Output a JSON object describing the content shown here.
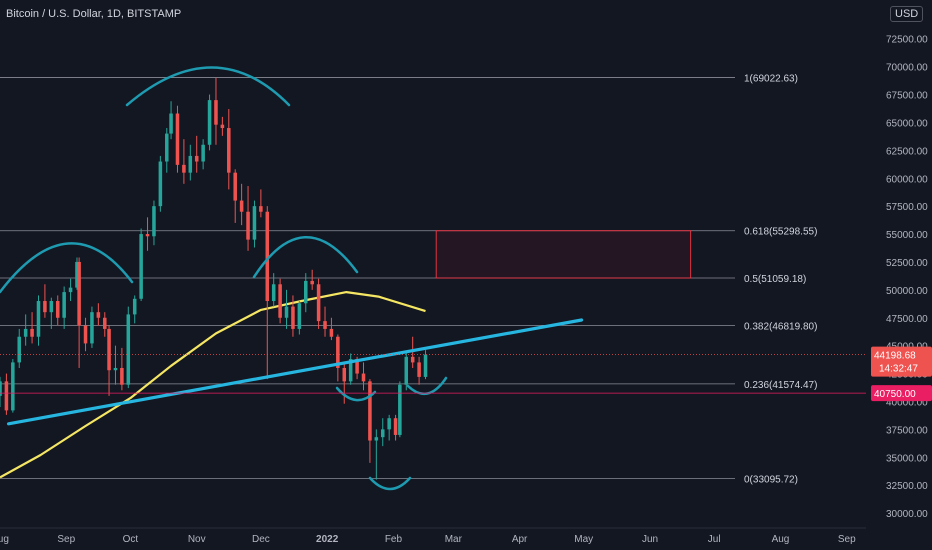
{
  "header": {
    "symbol_title": "Bitcoin / U.S. Dollar, 1D, BITSTAMP",
    "currency_label": "USD"
  },
  "colors": {
    "background": "#131722",
    "up_candle": "#26a69a",
    "down_candle": "#ef5350",
    "fib_line": "#b2b5be",
    "moving_average": "#f5e663",
    "trendline": "#26b6e0",
    "pattern_arc": "#1e9bb0",
    "target_box": "#f23645",
    "last_price_badge": "#ef5350",
    "marker_badge": "#e91e63"
  },
  "chart_data": {
    "type": "candlestick",
    "title": "Bitcoin / U.S. Dollar, 1D, BITSTAMP",
    "xlabel": "",
    "ylabel": "",
    "x_ticks": [
      "Aug",
      "Sep",
      "Oct",
      "Nov",
      "Dec",
      "2022",
      "Feb",
      "Mar",
      "Apr",
      "May",
      "Jun",
      "Jul",
      "Aug",
      "Sep"
    ],
    "y_ticks": [
      "30000.00",
      "32500.00",
      "35000.00",
      "37500.00",
      "40000.00",
      "42500.00",
      "45000.00",
      "47500.00",
      "50000.00",
      "52500.00",
      "55000.00",
      "57500.00",
      "60000.00",
      "62500.00",
      "65000.00",
      "67500.00",
      "70000.00",
      "72500.00"
    ],
    "ylim": [
      29200,
      74000
    ],
    "xlim": [
      "2021-08-01",
      "2022-09-10"
    ],
    "grid": false,
    "last_price": "44198.68",
    "countdown": "14:32:47",
    "marked_level": "40750.00",
    "fib_levels": [
      {
        "label": "1(69022.63)",
        "value": 69022.63
      },
      {
        "label": "0.618(55298.55)",
        "value": 55298.55
      },
      {
        "label": "0.5(51059.18)",
        "value": 51059.18
      },
      {
        "label": "0.382(46819.80)",
        "value": 46819.8
      },
      {
        "label": "0.236(41574.47)",
        "value": 41574.47
      },
      {
        "label": "0(33095.72)",
        "value": 33095.72
      }
    ],
    "target_zone": {
      "from": "2022-02-21",
      "to": "2022-06-20",
      "low": 51059.18,
      "high": 55298.55
    },
    "trendline": [
      {
        "x": "2021-08-05",
        "y": 38000
      },
      {
        "x": "2022-04-30",
        "y": 47300
      }
    ],
    "moving_average": [
      {
        "x": "2021-08-01",
        "y": 33200
      },
      {
        "x": "2021-08-20",
        "y": 35200
      },
      {
        "x": "2021-09-10",
        "y": 37800
      },
      {
        "x": "2021-10-01",
        "y": 40300
      },
      {
        "x": "2021-10-20",
        "y": 43200
      },
      {
        "x": "2021-11-10",
        "y": 46100
      },
      {
        "x": "2021-12-01",
        "y": 48200
      },
      {
        "x": "2021-12-20",
        "y": 49000
      },
      {
        "x": "2022-01-10",
        "y": 49800
      },
      {
        "x": "2022-01-25",
        "y": 49400
      },
      {
        "x": "2022-02-16",
        "y": 48100
      }
    ],
    "ohlc": [
      {
        "x": "2021-08-01",
        "o": 40500,
        "h": 42200,
        "l": 39500,
        "c": 41800
      },
      {
        "x": "2021-08-04",
        "o": 41800,
        "h": 42500,
        "l": 38800,
        "c": 39200
      },
      {
        "x": "2021-08-07",
        "o": 39200,
        "h": 43800,
        "l": 39000,
        "c": 43500
      },
      {
        "x": "2021-08-10",
        "o": 43500,
        "h": 46500,
        "l": 43000,
        "c": 45800
      },
      {
        "x": "2021-08-13",
        "o": 45800,
        "h": 47800,
        "l": 45000,
        "c": 46500
      },
      {
        "x": "2021-08-16",
        "o": 46500,
        "h": 48000,
        "l": 45200,
        "c": 45800
      },
      {
        "x": "2021-08-19",
        "o": 45800,
        "h": 49500,
        "l": 45000,
        "c": 49000
      },
      {
        "x": "2021-08-22",
        "o": 49000,
        "h": 50500,
        "l": 47500,
        "c": 48000
      },
      {
        "x": "2021-08-25",
        "o": 48000,
        "h": 49300,
        "l": 46500,
        "c": 49000
      },
      {
        "x": "2021-08-28",
        "o": 49000,
        "h": 49500,
        "l": 46800,
        "c": 47500
      },
      {
        "x": "2021-08-31",
        "o": 47500,
        "h": 50300,
        "l": 46500,
        "c": 49800
      },
      {
        "x": "2021-09-03",
        "o": 49800,
        "h": 51000,
        "l": 49000,
        "c": 50200
      },
      {
        "x": "2021-09-06",
        "o": 50200,
        "h": 52900,
        "l": 50000,
        "c": 52500
      },
      {
        "x": "2021-09-07",
        "o": 52500,
        "h": 52900,
        "l": 43000,
        "c": 46800
      },
      {
        "x": "2021-09-10",
        "o": 46800,
        "h": 47500,
        "l": 44500,
        "c": 45200
      },
      {
        "x": "2021-09-13",
        "o": 45200,
        "h": 48500,
        "l": 44800,
        "c": 48000
      },
      {
        "x": "2021-09-16",
        "o": 48000,
        "h": 48800,
        "l": 46800,
        "c": 47500
      },
      {
        "x": "2021-09-19",
        "o": 47500,
        "h": 48000,
        "l": 45800,
        "c": 46500
      },
      {
        "x": "2021-09-21",
        "o": 46500,
        "h": 46800,
        "l": 40500,
        "c": 42800
      },
      {
        "x": "2021-09-24",
        "o": 42800,
        "h": 45000,
        "l": 41500,
        "c": 43000
      },
      {
        "x": "2021-09-27",
        "o": 43000,
        "h": 44800,
        "l": 41000,
        "c": 41500
      },
      {
        "x": "2021-09-30",
        "o": 41500,
        "h": 48500,
        "l": 41200,
        "c": 47800
      },
      {
        "x": "2021-10-03",
        "o": 47800,
        "h": 49500,
        "l": 47000,
        "c": 49200
      },
      {
        "x": "2021-10-06",
        "o": 49200,
        "h": 55500,
        "l": 49000,
        "c": 55000
      },
      {
        "x": "2021-10-09",
        "o": 55000,
        "h": 56500,
        "l": 53500,
        "c": 54800
      },
      {
        "x": "2021-10-12",
        "o": 54800,
        "h": 58000,
        "l": 54000,
        "c": 57500
      },
      {
        "x": "2021-10-15",
        "o": 57500,
        "h": 62000,
        "l": 57000,
        "c": 61500
      },
      {
        "x": "2021-10-18",
        "o": 61500,
        "h": 64500,
        "l": 60500,
        "c": 64000
      },
      {
        "x": "2021-10-20",
        "o": 64000,
        "h": 66900,
        "l": 63500,
        "c": 65800
      },
      {
        "x": "2021-10-23",
        "o": 65800,
        "h": 66500,
        "l": 60500,
        "c": 61200
      },
      {
        "x": "2021-10-26",
        "o": 61200,
        "h": 63500,
        "l": 59500,
        "c": 60500
      },
      {
        "x": "2021-10-29",
        "o": 60500,
        "h": 63000,
        "l": 59800,
        "c": 62000
      },
      {
        "x": "2021-11-01",
        "o": 62000,
        "h": 63800,
        "l": 60500,
        "c": 61500
      },
      {
        "x": "2021-11-04",
        "o": 61500,
        "h": 63500,
        "l": 60800,
        "c": 63000
      },
      {
        "x": "2021-11-07",
        "o": 63000,
        "h": 67500,
        "l": 62500,
        "c": 67000
      },
      {
        "x": "2021-11-10",
        "o": 67000,
        "h": 69000,
        "l": 63000,
        "c": 64800
      },
      {
        "x": "2021-11-13",
        "o": 64800,
        "h": 65500,
        "l": 63800,
        "c": 64500
      },
      {
        "x": "2021-11-16",
        "o": 64500,
        "h": 66200,
        "l": 59000,
        "c": 60500
      },
      {
        "x": "2021-11-19",
        "o": 60500,
        "h": 60800,
        "l": 56000,
        "c": 58000
      },
      {
        "x": "2021-11-22",
        "o": 58000,
        "h": 59500,
        "l": 55800,
        "c": 57000
      },
      {
        "x": "2021-11-25",
        "o": 57000,
        "h": 59300,
        "l": 53500,
        "c": 54500
      },
      {
        "x": "2021-11-28",
        "o": 54500,
        "h": 58000,
        "l": 53800,
        "c": 57500
      },
      {
        "x": "2021-12-01",
        "o": 57500,
        "h": 59000,
        "l": 56500,
        "c": 57000
      },
      {
        "x": "2021-12-04",
        "o": 57000,
        "h": 57500,
        "l": 42000,
        "c": 49000
      },
      {
        "x": "2021-12-07",
        "o": 49000,
        "h": 51500,
        "l": 48500,
        "c": 50500
      },
      {
        "x": "2021-12-10",
        "o": 50500,
        "h": 51000,
        "l": 47000,
        "c": 47500
      },
      {
        "x": "2021-12-13",
        "o": 47500,
        "h": 50000,
        "l": 46500,
        "c": 48500
      },
      {
        "x": "2021-12-16",
        "o": 48500,
        "h": 49500,
        "l": 45800,
        "c": 46500
      },
      {
        "x": "2021-12-19",
        "o": 46500,
        "h": 49000,
        "l": 46000,
        "c": 48800
      },
      {
        "x": "2021-12-22",
        "o": 48800,
        "h": 51500,
        "l": 48000,
        "c": 50800
      },
      {
        "x": "2021-12-25",
        "o": 50800,
        "h": 51800,
        "l": 50000,
        "c": 50500
      },
      {
        "x": "2021-12-28",
        "o": 50500,
        "h": 51000,
        "l": 46500,
        "c": 47200
      },
      {
        "x": "2021-12-31",
        "o": 47200,
        "h": 48500,
        "l": 45800,
        "c": 46500
      },
      {
        "x": "2022-01-03",
        "o": 46500,
        "h": 47500,
        "l": 45500,
        "c": 45800
      },
      {
        "x": "2022-01-06",
        "o": 45800,
        "h": 46000,
        "l": 41800,
        "c": 43000
      },
      {
        "x": "2022-01-09",
        "o": 43000,
        "h": 43500,
        "l": 39800,
        "c": 41800
      },
      {
        "x": "2022-01-12",
        "o": 41800,
        "h": 44300,
        "l": 41500,
        "c": 43800
      },
      {
        "x": "2022-01-15",
        "o": 43800,
        "h": 44000,
        "l": 42000,
        "c": 42500
      },
      {
        "x": "2022-01-18",
        "o": 42500,
        "h": 43500,
        "l": 41000,
        "c": 41800
      },
      {
        "x": "2022-01-21",
        "o": 41800,
        "h": 42000,
        "l": 34500,
        "c": 36500
      },
      {
        "x": "2022-01-24",
        "o": 36500,
        "h": 37500,
        "l": 33000,
        "c": 36800
      },
      {
        "x": "2022-01-27",
        "o": 36800,
        "h": 38500,
        "l": 36000,
        "c": 37500
      },
      {
        "x": "2022-01-30",
        "o": 37500,
        "h": 38800,
        "l": 36500,
        "c": 38500
      },
      {
        "x": "2022-02-02",
        "o": 38500,
        "h": 38800,
        "l": 36500,
        "c": 37000
      },
      {
        "x": "2022-02-04",
        "o": 37000,
        "h": 41800,
        "l": 36800,
        "c": 41500
      },
      {
        "x": "2022-02-07",
        "o": 41500,
        "h": 44500,
        "l": 41000,
        "c": 44000
      },
      {
        "x": "2022-02-10",
        "o": 44000,
        "h": 45800,
        "l": 43000,
        "c": 43500
      },
      {
        "x": "2022-02-13",
        "o": 43500,
        "h": 44000,
        "l": 41500,
        "c": 42200
      },
      {
        "x": "2022-02-16",
        "o": 42200,
        "h": 44600,
        "l": 42000,
        "c": 44198.68
      }
    ]
  }
}
